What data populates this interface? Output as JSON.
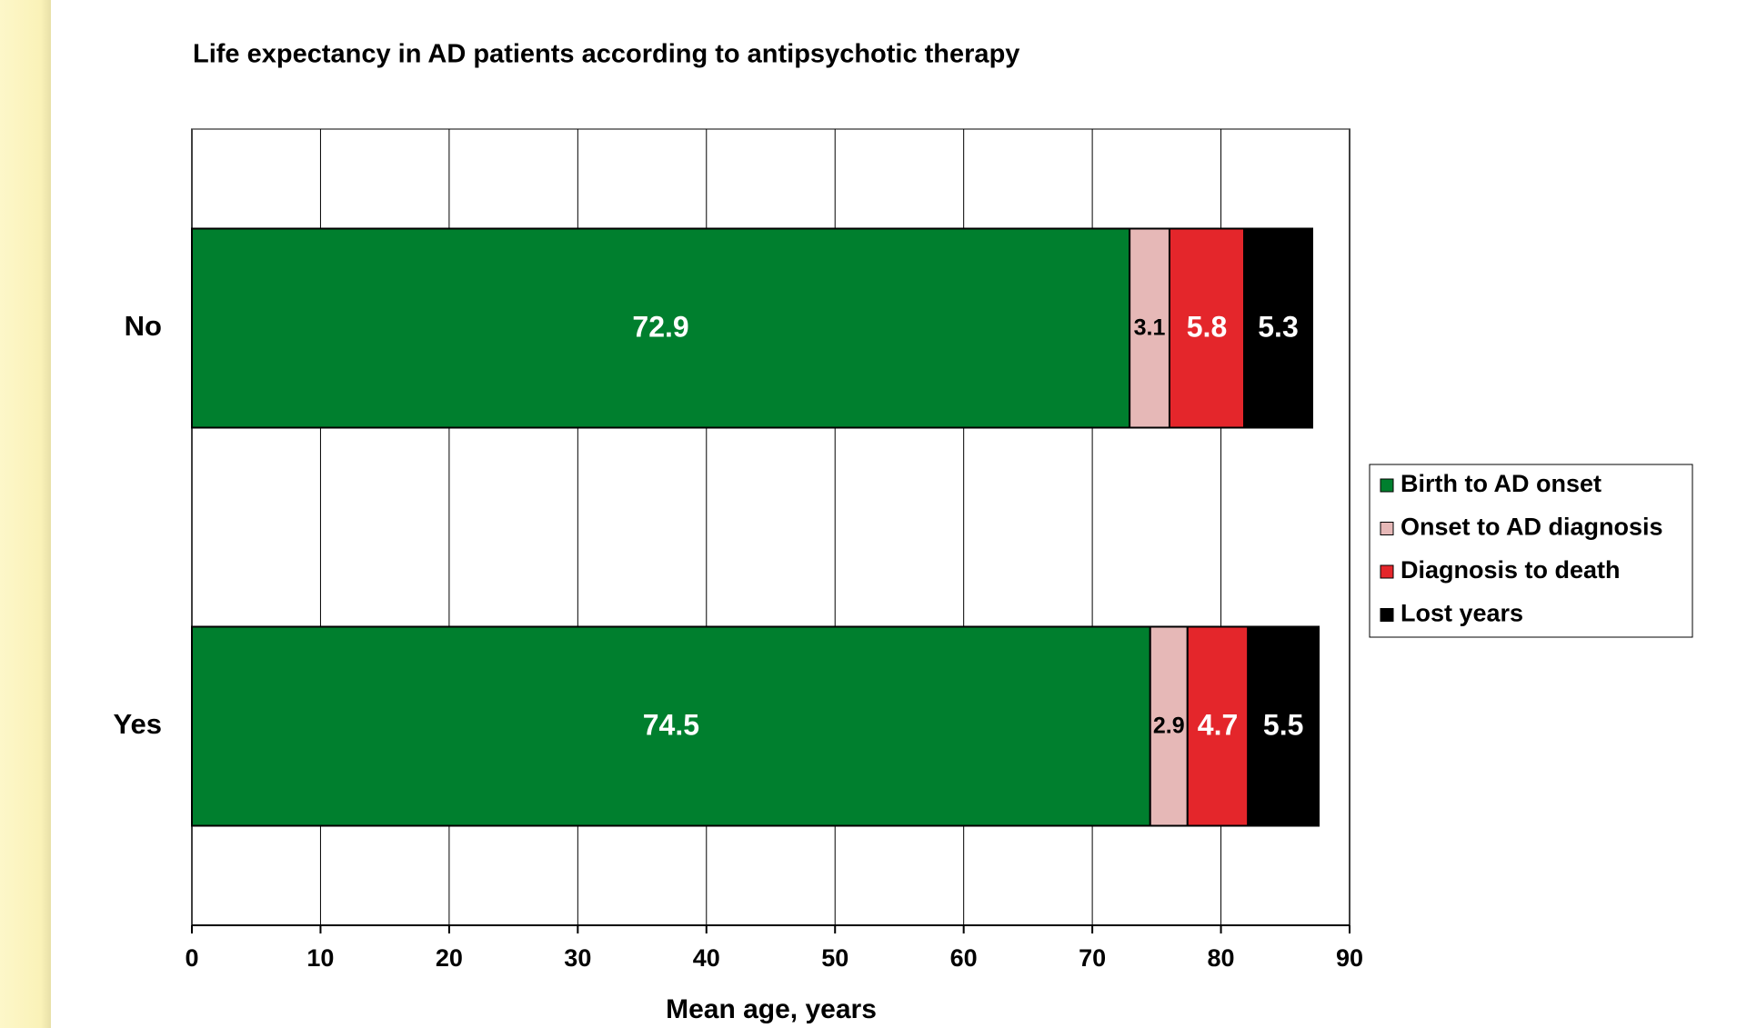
{
  "chart_data": {
    "type": "stacked-barh",
    "title": "Life expectancy in AD patients according to antipsychotic therapy",
    "x_label": "Mean age, years",
    "categories": [
      "No",
      "Yes"
    ],
    "series": [
      {
        "name": "Birth to AD onset",
        "color": "#007f2e",
        "label_color": "#ffffff",
        "values": [
          72.9,
          74.5
        ]
      },
      {
        "name": "Onset to AD diagnosis",
        "color": "#e6b8b7",
        "label_color": "#000000",
        "values": [
          3.1,
          2.9
        ]
      },
      {
        "name": "Diagnosis to death",
        "color": "#e4262b",
        "label_color": "#ffffff",
        "values": [
          5.8,
          4.7
        ]
      },
      {
        "name": "Lost years",
        "color": "#000000",
        "label_color": "#ffffff",
        "values": [
          5.3,
          5.5
        ]
      }
    ],
    "xlim": [
      0,
      90
    ],
    "xticks": [
      0,
      10,
      20,
      30,
      40,
      50,
      60,
      70,
      80,
      90
    ],
    "grid": true,
    "legend": "right"
  }
}
